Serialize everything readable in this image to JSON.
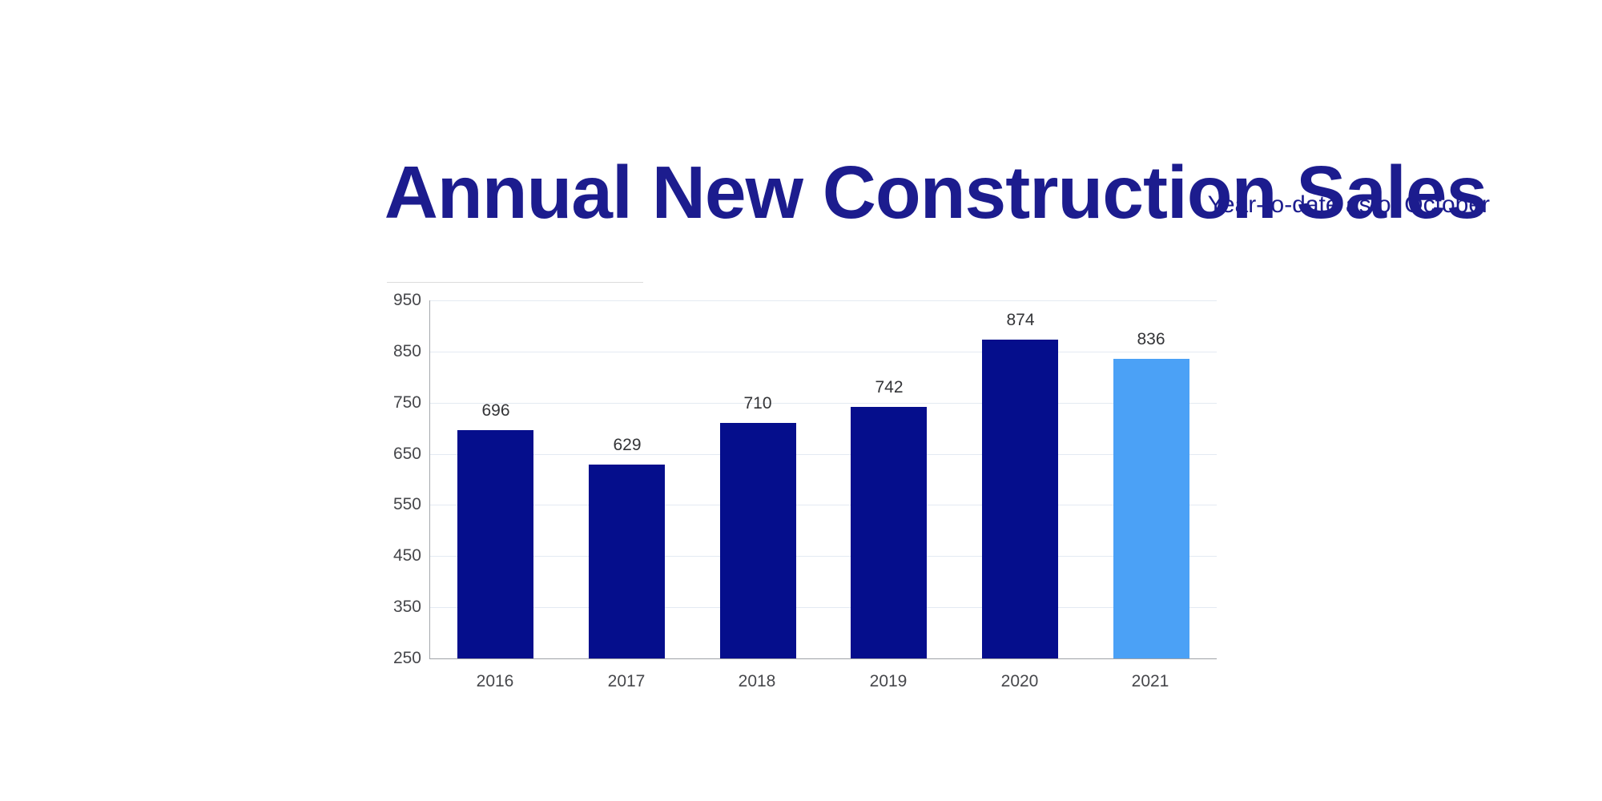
{
  "page": {
    "background": "#ffffff"
  },
  "header": {
    "title": "Annual New Construction Sales",
    "subtitle": "Year-to-date as of October"
  },
  "colors": {
    "title_text": "#1c1c8e",
    "subtitle_text": "#1c1c8e",
    "bar_primary": "#050e8c",
    "bar_highlight": "#4ba1f6",
    "gridline": "#e4eaf2",
    "axis_line": "#a6a9ae",
    "value_label_text": "#333437",
    "tick_label_text": "#46474b"
  },
  "chart_data": {
    "type": "bar",
    "title": "Annual New Construction Sales",
    "subtitle": "Year-to-date as of October",
    "categories": [
      "2016",
      "2017",
      "2018",
      "2019",
      "2020",
      "2021"
    ],
    "values": [
      696,
      629,
      710,
      742,
      874,
      836
    ],
    "value_labels": [
      "696",
      "629",
      "710",
      "742",
      "874",
      "836"
    ],
    "bar_color_keys": [
      "primary",
      "primary",
      "primary",
      "primary",
      "primary",
      "highlight"
    ],
    "xlabel": "",
    "ylabel": "",
    "ylim": [
      250,
      950
    ],
    "yticks": [
      250,
      350,
      450,
      550,
      650,
      750,
      850,
      950
    ],
    "grid": true,
    "legend_position": "none",
    "value_labels_shown": true
  }
}
